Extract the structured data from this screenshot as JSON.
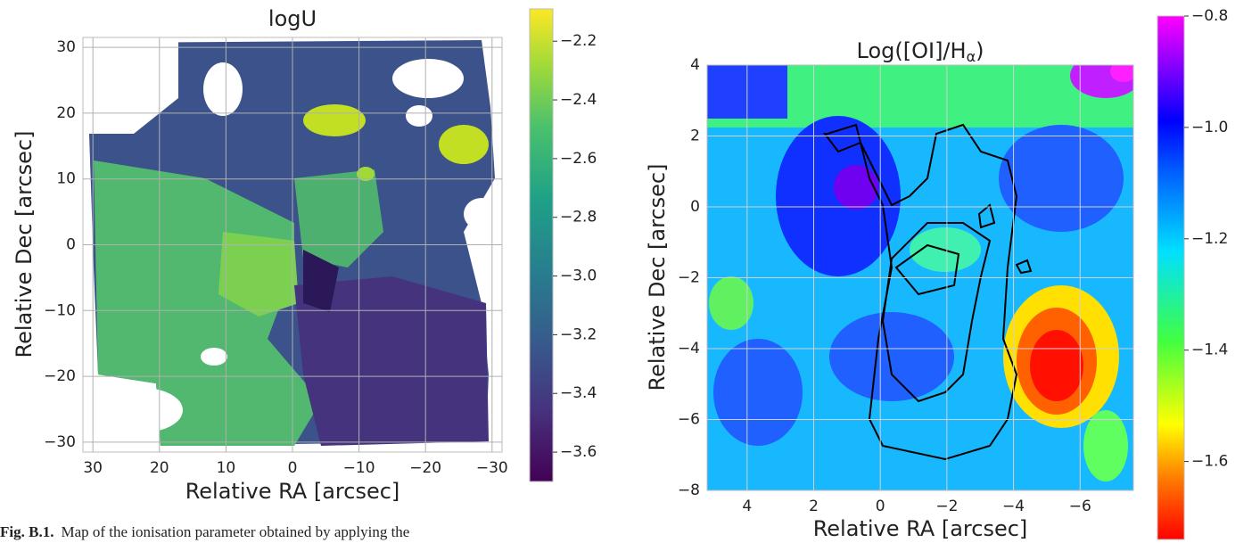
{
  "figures": [
    {
      "title": "logU",
      "xlabel": "Relative RA [arcsec]",
      "ylabel": "Relative Dec [arcsec]",
      "xlim": [
        31.5,
        -31.5
      ],
      "xticks": [
        30,
        20,
        10,
        0,
        {
          "value": -10,
          "label": "−10"
        },
        {
          "value": -20,
          "label": "−20"
        },
        {
          "value": -30,
          "label": "−30"
        }
      ],
      "ylim": [
        -31.5,
        31.5
      ],
      "yticks": [
        30,
        20,
        10,
        0,
        {
          "value": -10,
          "label": "−10"
        },
        {
          "value": -20,
          "label": "−20"
        },
        {
          "value": -30,
          "label": "−30"
        }
      ],
      "grid": true,
      "colorbar": {
        "lim": [
          -3.7,
          -2.09
        ],
        "ticks": [
          {
            "value": -2.2,
            "label": "−2.2"
          },
          {
            "value": -2.4,
            "label": "−2.4"
          },
          {
            "value": -2.6,
            "label": "−2.6"
          },
          {
            "value": -2.8,
            "label": "−2.8"
          },
          {
            "value": -3.0,
            "label": "−3.0"
          },
          {
            "value": -3.2,
            "label": "−3.2"
          },
          {
            "value": -3.4,
            "label": "−3.4"
          },
          {
            "value": -3.6,
            "label": "−3.6"
          }
        ]
      }
    },
    {
      "title": {
        "main": "Log([OI]/H",
        "sub": "α",
        "end": ")"
      },
      "xlabel": "Relative RA [arcsec]",
      "ylabel": "Relative Dec [arcsec]",
      "xlim": [
        5.2,
        -7.6
      ],
      "xticks": [
        4,
        2,
        0,
        {
          "value": -2,
          "label": "−2"
        },
        {
          "value": -4,
          "label": "−4"
        },
        {
          "value": -6,
          "label": "−6"
        }
      ],
      "ylim": [
        -8,
        4
      ],
      "yticks": [
        4,
        2,
        0,
        {
          "value": -2,
          "label": "−2"
        },
        {
          "value": -4,
          "label": "−4"
        },
        {
          "value": -6,
          "label": "−6"
        },
        {
          "value": -8,
          "label": "−8"
        }
      ],
      "grid": true,
      "colorbar": {
        "lim": [
          -1.74,
          -0.8
        ],
        "ticks": [
          {
            "value": -0.8,
            "label": "−0.8"
          },
          {
            "value": -1.0,
            "label": "−1.0"
          },
          {
            "value": -1.2,
            "label": "−1.2"
          },
          {
            "value": -1.4,
            "label": "−1.4"
          },
          {
            "value": -1.6,
            "label": "−1.6"
          }
        ]
      }
    }
  ],
  "caption": {
    "label": "Fig. B.1.",
    "text": "Map of the ionisation parameter obtained by applying the"
  }
}
